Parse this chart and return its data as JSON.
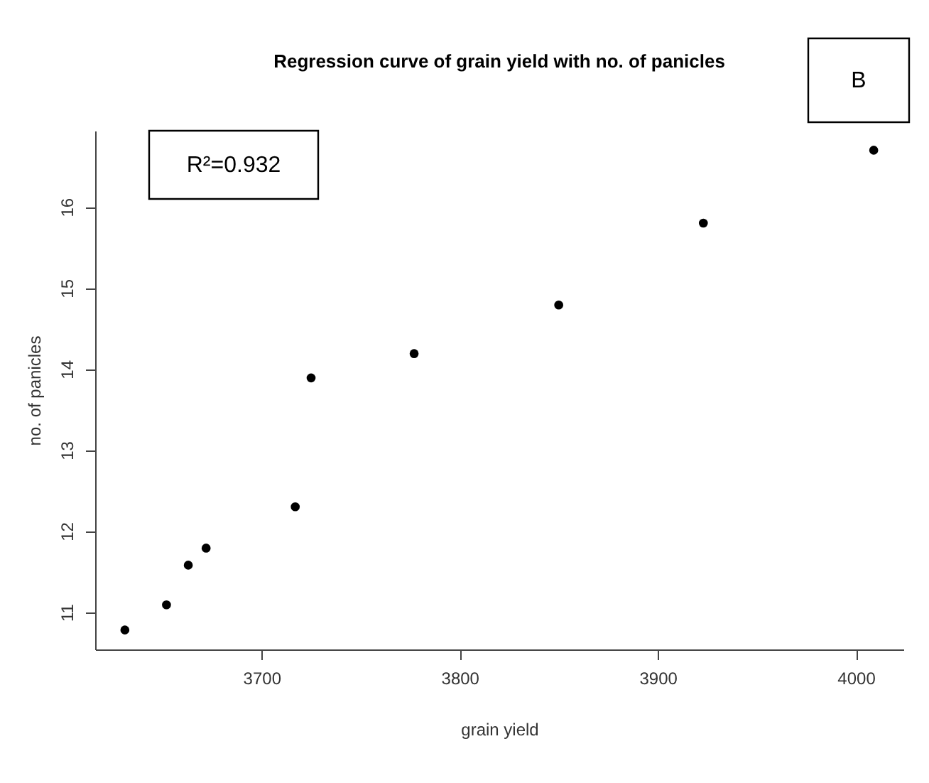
{
  "chart_data": {
    "type": "scatter",
    "title": "Regression curve of grain yield with no. of panicles",
    "xlabel": "grain yield",
    "ylabel": "no. of panicles",
    "x": [
      3631,
      3652,
      3663,
      3672,
      3717,
      3725,
      3777,
      3850,
      3923,
      4009
    ],
    "series": [
      {
        "color": "#000000",
        "values": [
          10.78,
          11.09,
          11.58,
          11.79,
          12.3,
          13.89,
          14.19,
          14.79,
          15.8,
          16.7
        ]
      }
    ],
    "xlim": [
      3616,
      4024
    ],
    "xticks": [
      3700,
      3800,
      3900,
      4000
    ],
    "ylim": [
      10.54,
      16.94
    ],
    "yticks": [
      11,
      12,
      13,
      14,
      15,
      16
    ],
    "annotations": [
      "R²=0.932",
      "B"
    ],
    "marker": "circle",
    "grid": false,
    "legend": false
  }
}
